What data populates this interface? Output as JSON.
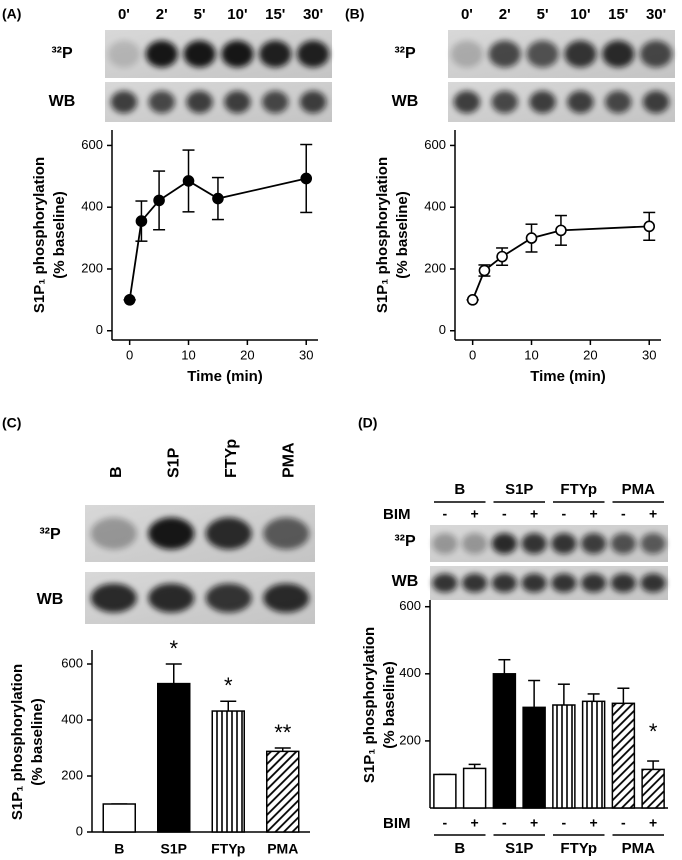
{
  "chart_data": [
    {
      "type": "line",
      "panel_label": "(A)",
      "blot": {
        "lanes": [
          "0'",
          "2'",
          "5'",
          "10'",
          "15'",
          "30'"
        ],
        "rows": [
          "³²P",
          "WB"
        ]
      },
      "y_label": [
        "S1P₁ phosphorylation",
        "(% baseline)"
      ],
      "x_label": "Time (min)",
      "x": [
        0,
        2,
        5,
        10,
        15,
        30
      ],
      "values": [
        100,
        355,
        422,
        485,
        428,
        493
      ],
      "errors": [
        0,
        65,
        95,
        100,
        68,
        110
      ],
      "marker": "filled",
      "color": "#000000",
      "xlim": [
        -3,
        32
      ],
      "xticks": [
        0,
        10,
        20,
        30
      ],
      "ylim": [
        -30,
        650
      ],
      "yticks": [
        0,
        200,
        400,
        600
      ]
    },
    {
      "type": "line",
      "panel_label": "(B)",
      "blot": {
        "lanes": [
          "0'",
          "2'",
          "5'",
          "10'",
          "15'",
          "30'"
        ],
        "rows": [
          "³²P",
          "WB"
        ]
      },
      "y_label": [
        "S1P₁ phosphorylation",
        "(% baseline)"
      ],
      "x_label": "Time (min)",
      "x": [
        0,
        2,
        5,
        10,
        15,
        30
      ],
      "values": [
        100,
        195,
        240,
        300,
        325,
        338
      ],
      "errors": [
        0,
        18,
        28,
        45,
        48,
        45
      ],
      "marker": "open",
      "color": "#000000",
      "xlim": [
        -3,
        32
      ],
      "xticks": [
        0,
        10,
        20,
        30
      ],
      "ylim": [
        -30,
        650
      ],
      "yticks": [
        0,
        200,
        400,
        600
      ]
    },
    {
      "type": "bar",
      "panel_label": "(C)",
      "blot": {
        "lanes": [
          "B",
          "S1P",
          "FTYp",
          "PMA"
        ],
        "rows": [
          "³²P",
          "WB"
        ]
      },
      "y_label": [
        "S1P₁ phosphorylation",
        "(% baseline)"
      ],
      "categories": [
        "B",
        "S1P",
        "FTYp",
        "PMA"
      ],
      "values": [
        100,
        530,
        432,
        288
      ],
      "errors": [
        0,
        70,
        35,
        12
      ],
      "fills": [
        "white",
        "black",
        "vstripes",
        "hatch"
      ],
      "annotations": [
        {
          "index": 1,
          "text": "*"
        },
        {
          "index": 2,
          "text": "*"
        },
        {
          "index": 3,
          "text": "**"
        }
      ],
      "ylim": [
        0,
        650
      ],
      "yticks": [
        0,
        200,
        400,
        600
      ]
    },
    {
      "type": "grouped_bar",
      "panel_label": "(D)",
      "blot_rows": [
        "³²P",
        "WB"
      ],
      "y_label": [
        "S1P₁ phosphorylation",
        "(% baseline)"
      ],
      "groups": [
        "B",
        "S1P",
        "FTYp",
        "PMA"
      ],
      "factor": "BIM",
      "categories": [
        "-",
        "+",
        "-",
        "+",
        "-",
        "+",
        "-",
        "+"
      ],
      "values": [
        100,
        118,
        400,
        300,
        307,
        318,
        312,
        115
      ],
      "errors": [
        0,
        12,
        42,
        80,
        62,
        22,
        45,
        25
      ],
      "fills": [
        "white",
        "black",
        "vstripes",
        "hatch"
      ],
      "annotations": [
        {
          "index": 7,
          "text": "*"
        }
      ],
      "ylim": [
        0,
        620
      ],
      "yticks": [
        200,
        400,
        600
      ]
    }
  ]
}
